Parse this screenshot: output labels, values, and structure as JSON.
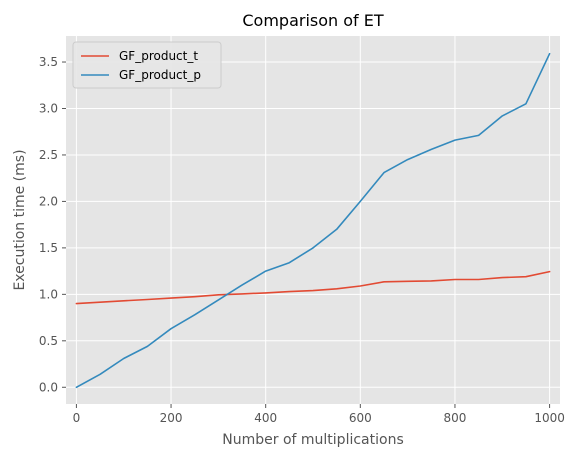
{
  "chart_data": {
    "type": "line",
    "title": "Comparison of ET",
    "xlabel": "Number of multiplications",
    "ylabel": "Execution time (ms)",
    "xlim": [
      -22,
      1022
    ],
    "ylim": [
      -0.18,
      3.78
    ],
    "x_ticks": [
      0,
      200,
      400,
      600,
      800,
      1000
    ],
    "y_ticks": [
      0.0,
      0.5,
      1.0,
      1.5,
      2.0,
      2.5,
      3.0,
      3.5
    ],
    "x_tick_labels": [
      "0",
      "200",
      "400",
      "600",
      "800",
      "1000"
    ],
    "y_tick_labels": [
      "0.0",
      "0.5",
      "1.0",
      "1.5",
      "2.0",
      "2.5",
      "3.0",
      "3.5"
    ],
    "grid": true,
    "legend_position": "top-left",
    "x": [
      0,
      50,
      100,
      150,
      200,
      250,
      300,
      350,
      400,
      450,
      500,
      550,
      600,
      650,
      700,
      750,
      800,
      850,
      900,
      950,
      1000
    ],
    "series": [
      {
        "name": "GF_product_t",
        "color": "#E24A33",
        "values": [
          0.9,
          0.915,
          0.93,
          0.945,
          0.96,
          0.975,
          0.995,
          1.005,
          1.015,
          1.03,
          1.04,
          1.06,
          1.09,
          1.135,
          1.14,
          1.145,
          1.16,
          1.16,
          1.18,
          1.19,
          1.245
        ]
      },
      {
        "name": "GF_product_p",
        "color": "#348ABD",
        "values": [
          0.0,
          0.14,
          0.31,
          0.44,
          0.63,
          0.78,
          0.94,
          1.1,
          1.25,
          1.34,
          1.5,
          1.7,
          2.0,
          2.31,
          2.45,
          2.56,
          2.66,
          2.71,
          2.92,
          3.05,
          3.59
        ]
      }
    ]
  }
}
